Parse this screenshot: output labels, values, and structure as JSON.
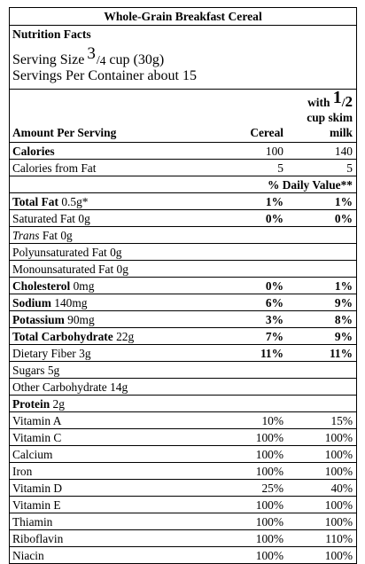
{
  "title": "Whole-Grain Breakfast Cereal",
  "header": {
    "nf_title": "Nutrition Facts",
    "serving_prefix": "Serving Size",
    "serving_num": "3",
    "serving_den": "4",
    "serving_suffix": "cup (30g)",
    "servings_per": "Servings Per Container about 15"
  },
  "columns": {
    "amount": "Amount Per Serving",
    "cereal": "Cereal",
    "with": "with",
    "milk_num": "1",
    "milk_den": "2",
    "milk_line1": "cup skim",
    "milk_line2": "milk"
  },
  "calories": {
    "label": "Calories",
    "cereal": "100",
    "milk": "140"
  },
  "calories_fat": {
    "label": "Calories from Fat",
    "cereal": "5",
    "milk": "5"
  },
  "daily_value_header": "% Daily Value**",
  "nutrients": [
    {
      "name": "Total Fat",
      "amount": "0.5g*",
      "cereal": "1%",
      "milk": "1%",
      "bold": true
    },
    {
      "name": "Saturated Fat",
      "amount": "0g",
      "cereal": "0%",
      "milk": "0%",
      "bold": false,
      "bold_values": true
    },
    {
      "name": "Trans",
      "amount": "Fat 0g",
      "cereal": "",
      "milk": "",
      "italic": true
    },
    {
      "name": "Polyunsaturated Fat",
      "amount": "0g",
      "cereal": "",
      "milk": ""
    },
    {
      "name": "Monounsaturated Fat",
      "amount": "0g",
      "cereal": "",
      "milk": ""
    },
    {
      "name": "Cholesterol",
      "amount": "0mg",
      "cereal": "0%",
      "milk": "1%",
      "bold": true
    },
    {
      "name": "Sodium",
      "amount": "140mg",
      "cereal": "6%",
      "milk": "9%",
      "bold": true
    },
    {
      "name": "Potassium",
      "amount": "90mg",
      "cereal": "3%",
      "milk": "8%",
      "bold": true
    },
    {
      "name": "Total Carbohydrate",
      "amount": "22g",
      "cereal": "7%",
      "milk": "9%",
      "bold": true
    },
    {
      "name": "Dietary Fiber",
      "amount": "3g",
      "cereal": "11%",
      "milk": "11%",
      "bold": false,
      "bold_values": true
    },
    {
      "name": "Sugars",
      "amount": "5g",
      "cereal": "",
      "milk": ""
    },
    {
      "name": "Other Carbohydrate",
      "amount": "14g",
      "cereal": "",
      "milk": ""
    },
    {
      "name": "Protein",
      "amount": "2g",
      "cereal": "",
      "milk": "",
      "bold": true
    }
  ],
  "vitamins": [
    {
      "name": "Vitamin A",
      "cereal": "10%",
      "milk": "15%"
    },
    {
      "name": "Vitamin C",
      "cereal": "100%",
      "milk": "100%"
    },
    {
      "name": "Calcium",
      "cereal": "100%",
      "milk": "100%"
    },
    {
      "name": "Iron",
      "cereal": "100%",
      "milk": "100%"
    },
    {
      "name": "Vitamin D",
      "cereal": "25%",
      "milk": "40%"
    },
    {
      "name": "Vitamin E",
      "cereal": "100%",
      "milk": "100%"
    },
    {
      "name": "Thiamin",
      "cereal": "100%",
      "milk": "100%"
    },
    {
      "name": "Riboflavin",
      "cereal": "100%",
      "milk": "110%"
    },
    {
      "name": "Niacin",
      "cereal": "100%",
      "milk": "100%"
    }
  ]
}
